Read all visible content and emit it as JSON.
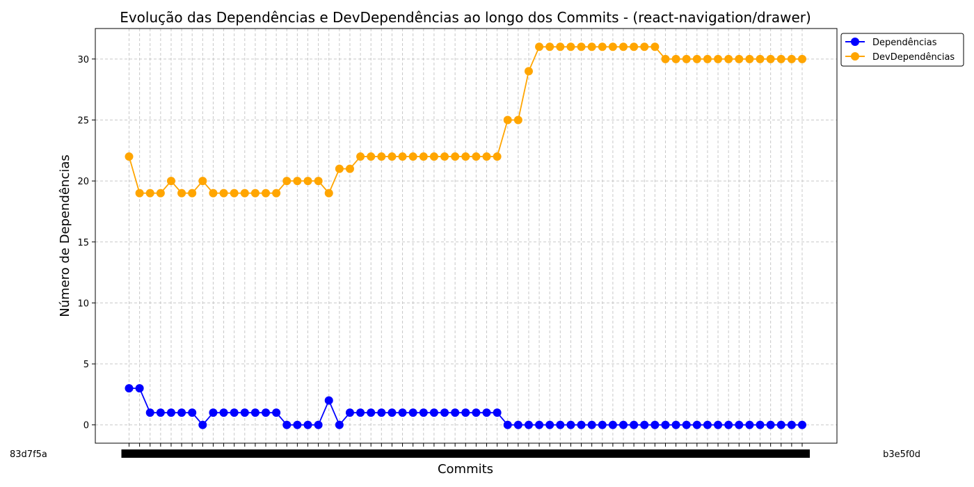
{
  "chart_data": {
    "type": "line",
    "title": "Evolução das Dependências e DevDependências ao longo dos Commits - (react-navigation/drawer)",
    "xlabel": "Commits",
    "ylabel": "Número de Dependências",
    "ylim": [
      -1.5,
      32.5
    ],
    "yticks": [
      0,
      5,
      10,
      15,
      20,
      25,
      30
    ],
    "grid": true,
    "legend_position": "top-right",
    "x_first_label": "83d7f5a",
    "x_last_label": "b3e5f0d",
    "series": [
      {
        "name": "Dependências",
        "color": "#0000ff",
        "values": [
          3,
          3,
          1,
          1,
          1,
          1,
          1,
          0,
          1,
          1,
          1,
          1,
          1,
          1,
          1,
          0,
          0,
          0,
          0,
          2,
          0,
          1,
          1,
          1,
          1,
          1,
          1,
          1,
          1,
          1,
          1,
          1,
          1,
          1,
          1,
          1,
          0,
          0,
          0,
          0,
          0,
          0,
          0,
          0,
          0,
          0,
          0,
          0,
          0,
          0,
          0,
          0,
          0,
          0,
          0,
          0,
          0,
          0,
          0,
          0,
          0,
          0,
          0,
          0,
          0
        ]
      },
      {
        "name": "DevDependências",
        "color": "#ffa500",
        "values": [
          22,
          19,
          19,
          19,
          20,
          19,
          19,
          20,
          19,
          19,
          19,
          19,
          19,
          19,
          19,
          20,
          20,
          20,
          20,
          19,
          21,
          21,
          22,
          22,
          22,
          22,
          22,
          22,
          22,
          22,
          22,
          22,
          22,
          22,
          22,
          22,
          25,
          25,
          29,
          31,
          31,
          31,
          31,
          31,
          31,
          31,
          31,
          31,
          31,
          31,
          31,
          30,
          30,
          30,
          30,
          30,
          30,
          30,
          30,
          30,
          30,
          30,
          30,
          30,
          30
        ]
      }
    ]
  }
}
